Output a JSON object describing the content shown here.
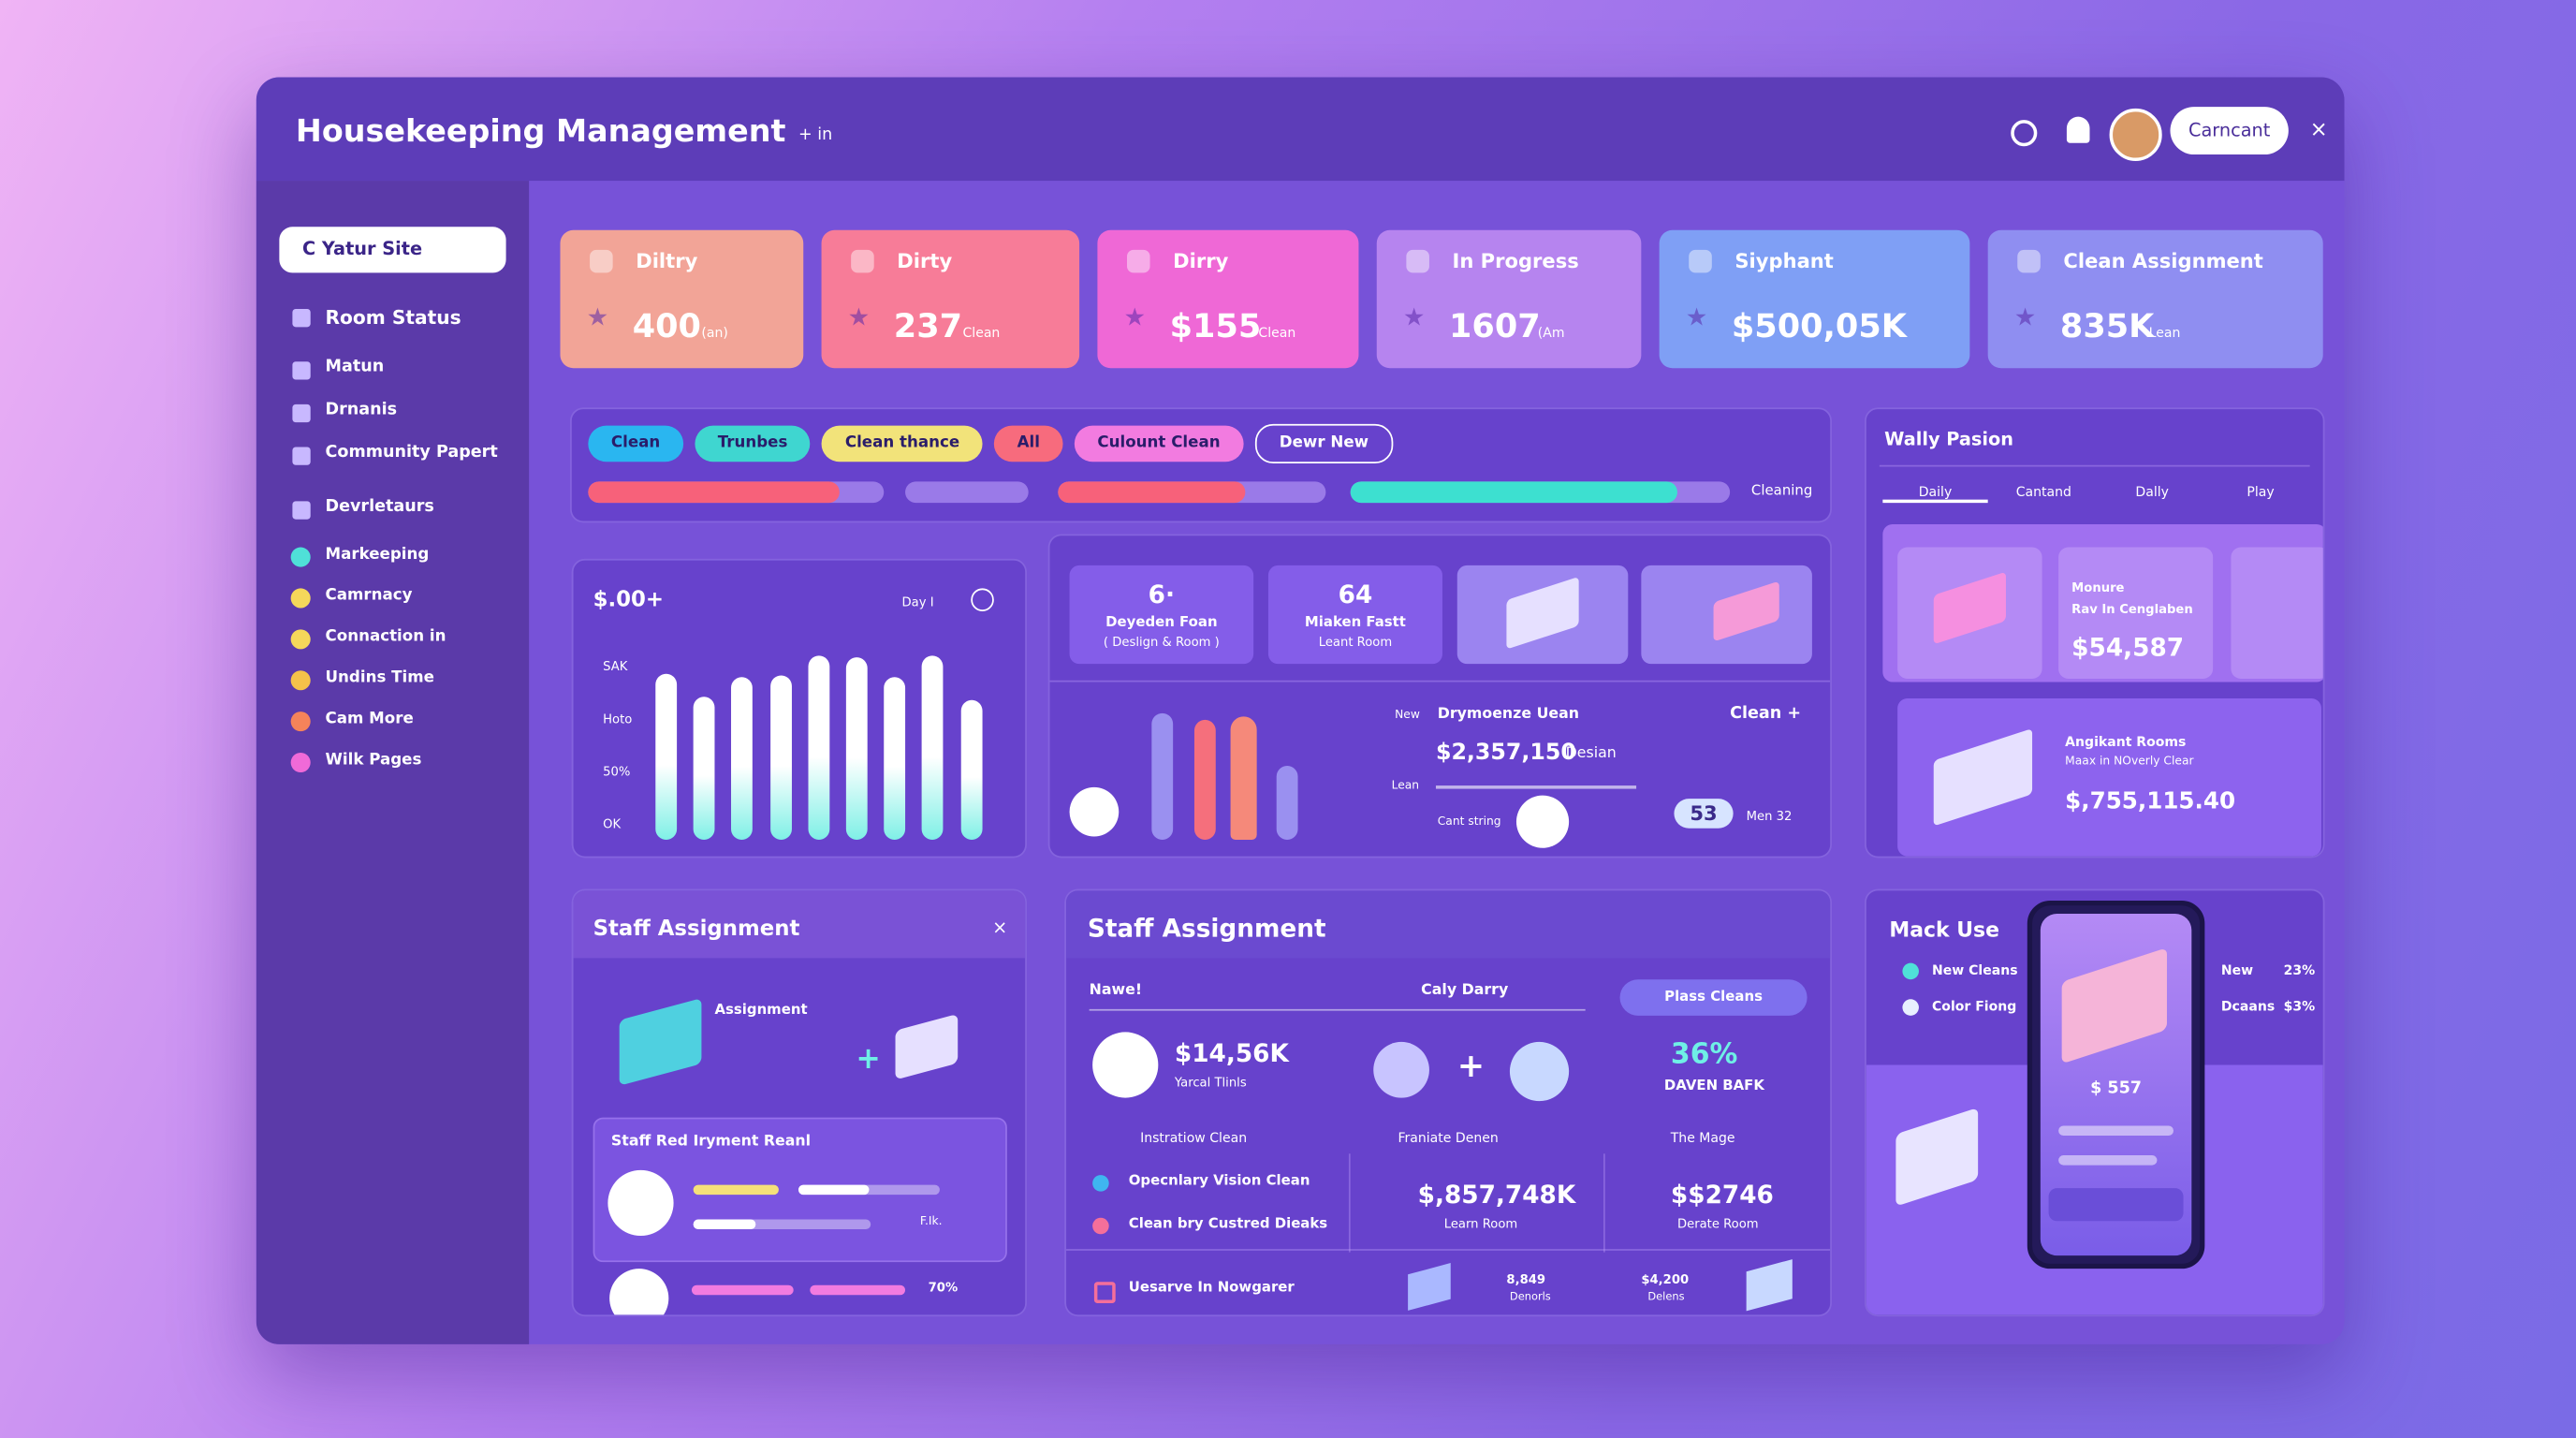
{
  "header": {
    "title": "Housekeeping Management",
    "tag": "+ in",
    "button": "Carncant",
    "close": "×"
  },
  "sidebar": {
    "search": "C Yatur Site",
    "nav": [
      "Room Status",
      "Matun",
      "Drnanis",
      "Community Papert",
      "Devrletaurs"
    ],
    "dots": [
      {
        "label": "Markeeping",
        "color": "#4fe0d8"
      },
      {
        "label": "Camrnacy",
        "color": "#f5d75a"
      },
      {
        "label": "Connaction in",
        "color": "#f5d75a"
      },
      {
        "label": "Undins Time",
        "color": "#f5c24a"
      },
      {
        "label": "Cam More",
        "color": "#f5835a"
      },
      {
        "label": "Wilk Pages",
        "color": "#f06ad8"
      }
    ]
  },
  "stats": [
    {
      "label": "Diltry",
      "value": "400",
      "unit": "(an)",
      "color": "#f2a497"
    },
    {
      "label": "Dirty",
      "value": "237",
      "unit": "Clean",
      "color": "#f77c98"
    },
    {
      "label": "Dirry",
      "value": "$155",
      "unit": "Clean",
      "color": "#ef68d6"
    },
    {
      "label": "In Progress",
      "value": "1607",
      "unit": "(Am",
      "color": "#b684ef"
    },
    {
      "label": "Siyphant",
      "value": "$500,05K",
      "unit": "",
      "color": "#7f9ff5"
    },
    {
      "label": "Clean Assignment",
      "value": "835K",
      "unit": "Lean",
      "color": "#8f8ef1"
    }
  ],
  "filters": {
    "chips": [
      {
        "label": "Clean",
        "color": "#2ab6f0"
      },
      {
        "label": "Trunbes",
        "color": "#3fd6d0"
      },
      {
        "label": "Clean thance",
        "color": "#f2e37a"
      },
      {
        "label": "All",
        "color": "#f76b7d"
      },
      {
        "label": "Culount Clean",
        "color": "#f27be0"
      },
      {
        "label": "Dewr New",
        "color": "transparent"
      }
    ],
    "progress_label": "Cleaning"
  },
  "spend": {
    "title": "$.00+",
    "control": "Day I",
    "y_labels": [
      "SAK",
      "Hoto",
      "50%",
      "OK"
    ],
    "ylim": [
      0,
      100
    ],
    "bars": [
      90,
      78,
      88,
      89,
      100,
      99,
      88,
      100,
      76
    ]
  },
  "rooms": {
    "card1": {
      "value": "6·",
      "title": "Deyeden Foan",
      "sub": "( Deslign & Room )"
    },
    "card2": {
      "value": "64",
      "title": "Miaken Fastt",
      "sub": "Leant Room"
    },
    "new": "New",
    "name": "Drymoenze Uean",
    "amount": "$2,357,150",
    "amount_unit": "Desian",
    "lean": "Lean",
    "cant": "Cant string",
    "clean": "Clean +",
    "badge": "53",
    "men": "Men 32"
  },
  "wally": {
    "title": "Wally Pasion",
    "tabs": [
      "Daily",
      "Cantand",
      "Dally",
      "Play"
    ],
    "card1": {
      "title": "Monure",
      "sub": "Rav In Cenglaben",
      "value": "$54,587"
    },
    "card2": {
      "title": "Angikant Rooms",
      "sub": "Maax in NOverly Clear",
      "value": "$,755,115.40"
    }
  },
  "staff_left": {
    "title": "Staff Assignment",
    "close": "×",
    "label": "Assignment",
    "list_title": "Staff Red Iryment Reanl",
    "row_label": "F.Ik.",
    "row_pct": "70%"
  },
  "staff_mid": {
    "title": "Staff Assignment",
    "name_col": "Nawe!",
    "date_col": "Caly Darry",
    "button": "Plass Cleans",
    "amount": "$14,56K",
    "amount_sub": "Yarcal Tlinls",
    "pct": "36%",
    "pct_sub": "DAVEN BAFK",
    "cols": [
      "Instratiow Clean",
      "Franiate Denen",
      "The Mage"
    ],
    "items": [
      "Opecnlary Vision Clean",
      "Clean bry Custred Dieaks"
    ],
    "val1": "$,857,748K",
    "val1_sub": "Learn Room",
    "val2": "$$2746",
    "val2_sub": "Derate Room",
    "footer": "Uesarve In Nowgarer",
    "f1": "8,849",
    "f1_sub": "Denorls",
    "f2": "$4,200",
    "f2_sub": "Delens"
  },
  "mack": {
    "title": "Mack Use",
    "legend": [
      {
        "label": "New Cleans",
        "color": "#4fe0d8"
      },
      {
        "label": "Color Fiong",
        "color": "#e8f0ff"
      }
    ],
    "right": [
      {
        "label": "New",
        "pct": "23%"
      },
      {
        "label": "Dcaans",
        "pct": "$3%"
      }
    ],
    "phone_value": "$ 557"
  }
}
